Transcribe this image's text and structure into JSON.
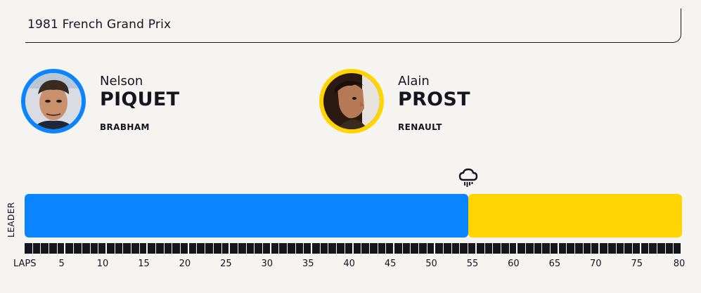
{
  "header": {
    "title": "1981 French Grand Prix"
  },
  "drivers": [
    {
      "first": "Nelson",
      "last": "PIQUET",
      "team": "BRABHAM",
      "color": "#0a84ff"
    },
    {
      "first": "Alain",
      "last": "PROST",
      "team": "RENAULT",
      "color": "#ffd400"
    }
  ],
  "chart": {
    "leader_label": "LEADER",
    "laps_label": "LAPS",
    "total_laps": 80,
    "ticks": [
      "5",
      "10",
      "15",
      "20",
      "25",
      "30",
      "35",
      "40",
      "45",
      "50",
      "55",
      "60",
      "65",
      "70",
      "75",
      "80"
    ],
    "segments": [
      {
        "driver": "PIQUET",
        "from_lap": 0,
        "to_lap": 54,
        "color": "#0a84ff"
      },
      {
        "driver": "PROST",
        "from_lap": 54,
        "to_lap": 80,
        "color": "#ffd400"
      }
    ],
    "events": [
      {
        "lap": 54,
        "icon": "rain-cloud-icon"
      }
    ]
  }
}
